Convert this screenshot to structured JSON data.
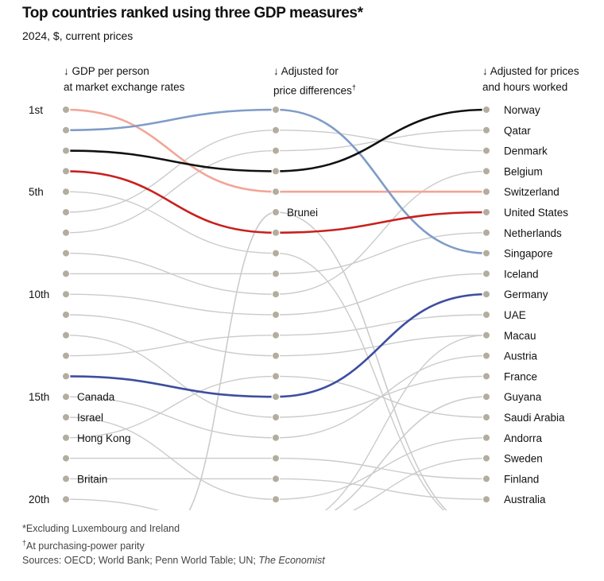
{
  "title": "Top countries ranked using three GDP measures*",
  "subtitle": "2024, $, current prices",
  "chart_data": {
    "type": "slope",
    "columns": [
      {
        "arrow": "↓",
        "line1": "GDP per person",
        "line2": "at market exchange rates"
      },
      {
        "arrow": "↓",
        "line1": "Adjusted for",
        "line2": "price differences",
        "mark": "†"
      },
      {
        "arrow": "↓",
        "line1": "Adjusted for prices",
        "line2": "and hours worked"
      }
    ],
    "rank_labels": [
      {
        "rank": 1,
        "label": "1st"
      },
      {
        "rank": 5,
        "label": "5th"
      },
      {
        "rank": 10,
        "label": "10th"
      },
      {
        "rank": 15,
        "label": "15th"
      },
      {
        "rank": 20,
        "label": "20th"
      }
    ],
    "max_rank": 20,
    "right_labels": [
      "Norway",
      "Qatar",
      "Denmark",
      "Belgium",
      "Switzerland",
      "United States",
      "Netherlands",
      "Singapore",
      "Iceland",
      "Germany",
      "UAE",
      "Macau",
      "Austria",
      "France",
      "Guyana",
      "Saudi Arabia",
      "Andorra",
      "Sweden",
      "Finland",
      "Australia"
    ],
    "left_labels": [
      {
        "rank": 15,
        "text": "Canada"
      },
      {
        "rank": 16,
        "text": "Israel"
      },
      {
        "rank": 17,
        "text": "Hong Kong"
      },
      {
        "rank": 19,
        "text": "Britain"
      }
    ],
    "middle_labels": [
      {
        "rank": 6,
        "text": "Brunei"
      }
    ],
    "highlighted_series": [
      {
        "color": "#f2a598",
        "ranks": [
          1,
          5,
          5
        ]
      },
      {
        "color": "#7f9cc8",
        "ranks": [
          2,
          1,
          8
        ]
      },
      {
        "color": "#111111",
        "ranks": [
          3,
          4,
          1
        ]
      },
      {
        "color": "#c8201e",
        "ranks": [
          4,
          7,
          6
        ]
      },
      {
        "color": "#3d4ea0",
        "ranks": [
          14,
          15,
          10
        ]
      }
    ],
    "gray_series": [
      {
        "ranks": [
          5,
          8,
          null
        ]
      },
      {
        "ranks": [
          6,
          2,
          3
        ]
      },
      {
        "ranks": [
          7,
          3,
          2
        ]
      },
      {
        "ranks": [
          8,
          10,
          4
        ]
      },
      {
        "ranks": [
          9,
          9,
          7
        ]
      },
      {
        "ranks": [
          10,
          11,
          9
        ]
      },
      {
        "ranks": [
          11,
          13,
          12
        ]
      },
      {
        "ranks": [
          12,
          16,
          14
        ]
      },
      {
        "ranks": [
          13,
          12,
          11
        ]
      },
      {
        "ranks": [
          15,
          17,
          13
        ]
      },
      {
        "ranks": [
          16,
          20,
          17
        ]
      },
      {
        "ranks": [
          17,
          14,
          16
        ]
      },
      {
        "ranks": [
          18,
          18,
          19
        ]
      },
      {
        "ranks": [
          19,
          19,
          20
        ]
      },
      {
        "ranks": [
          20,
          null,
          18
        ]
      },
      {
        "ranks": [
          null,
          6,
          null
        ]
      },
      {
        "ranks": [
          null,
          6,
          null
        ]
      },
      {
        "ranks": [
          null,
          null,
          15
        ]
      },
      {
        "ranks": [
          null,
          null,
          15
        ]
      },
      {
        "ranks": [
          null,
          null,
          12
        ]
      }
    ],
    "colors": {
      "gray_line": "#cbcbcb",
      "gray_dot": "#b3ad9f"
    }
  },
  "footnotes": {
    "note1": "*Excluding Luxembourg and Ireland",
    "mark2": "†",
    "note2": "At purchasing-power parity",
    "sources": "Sources: OECD; World Bank; Penn World Table; UN; ",
    "sources_italic": "The Economist"
  }
}
